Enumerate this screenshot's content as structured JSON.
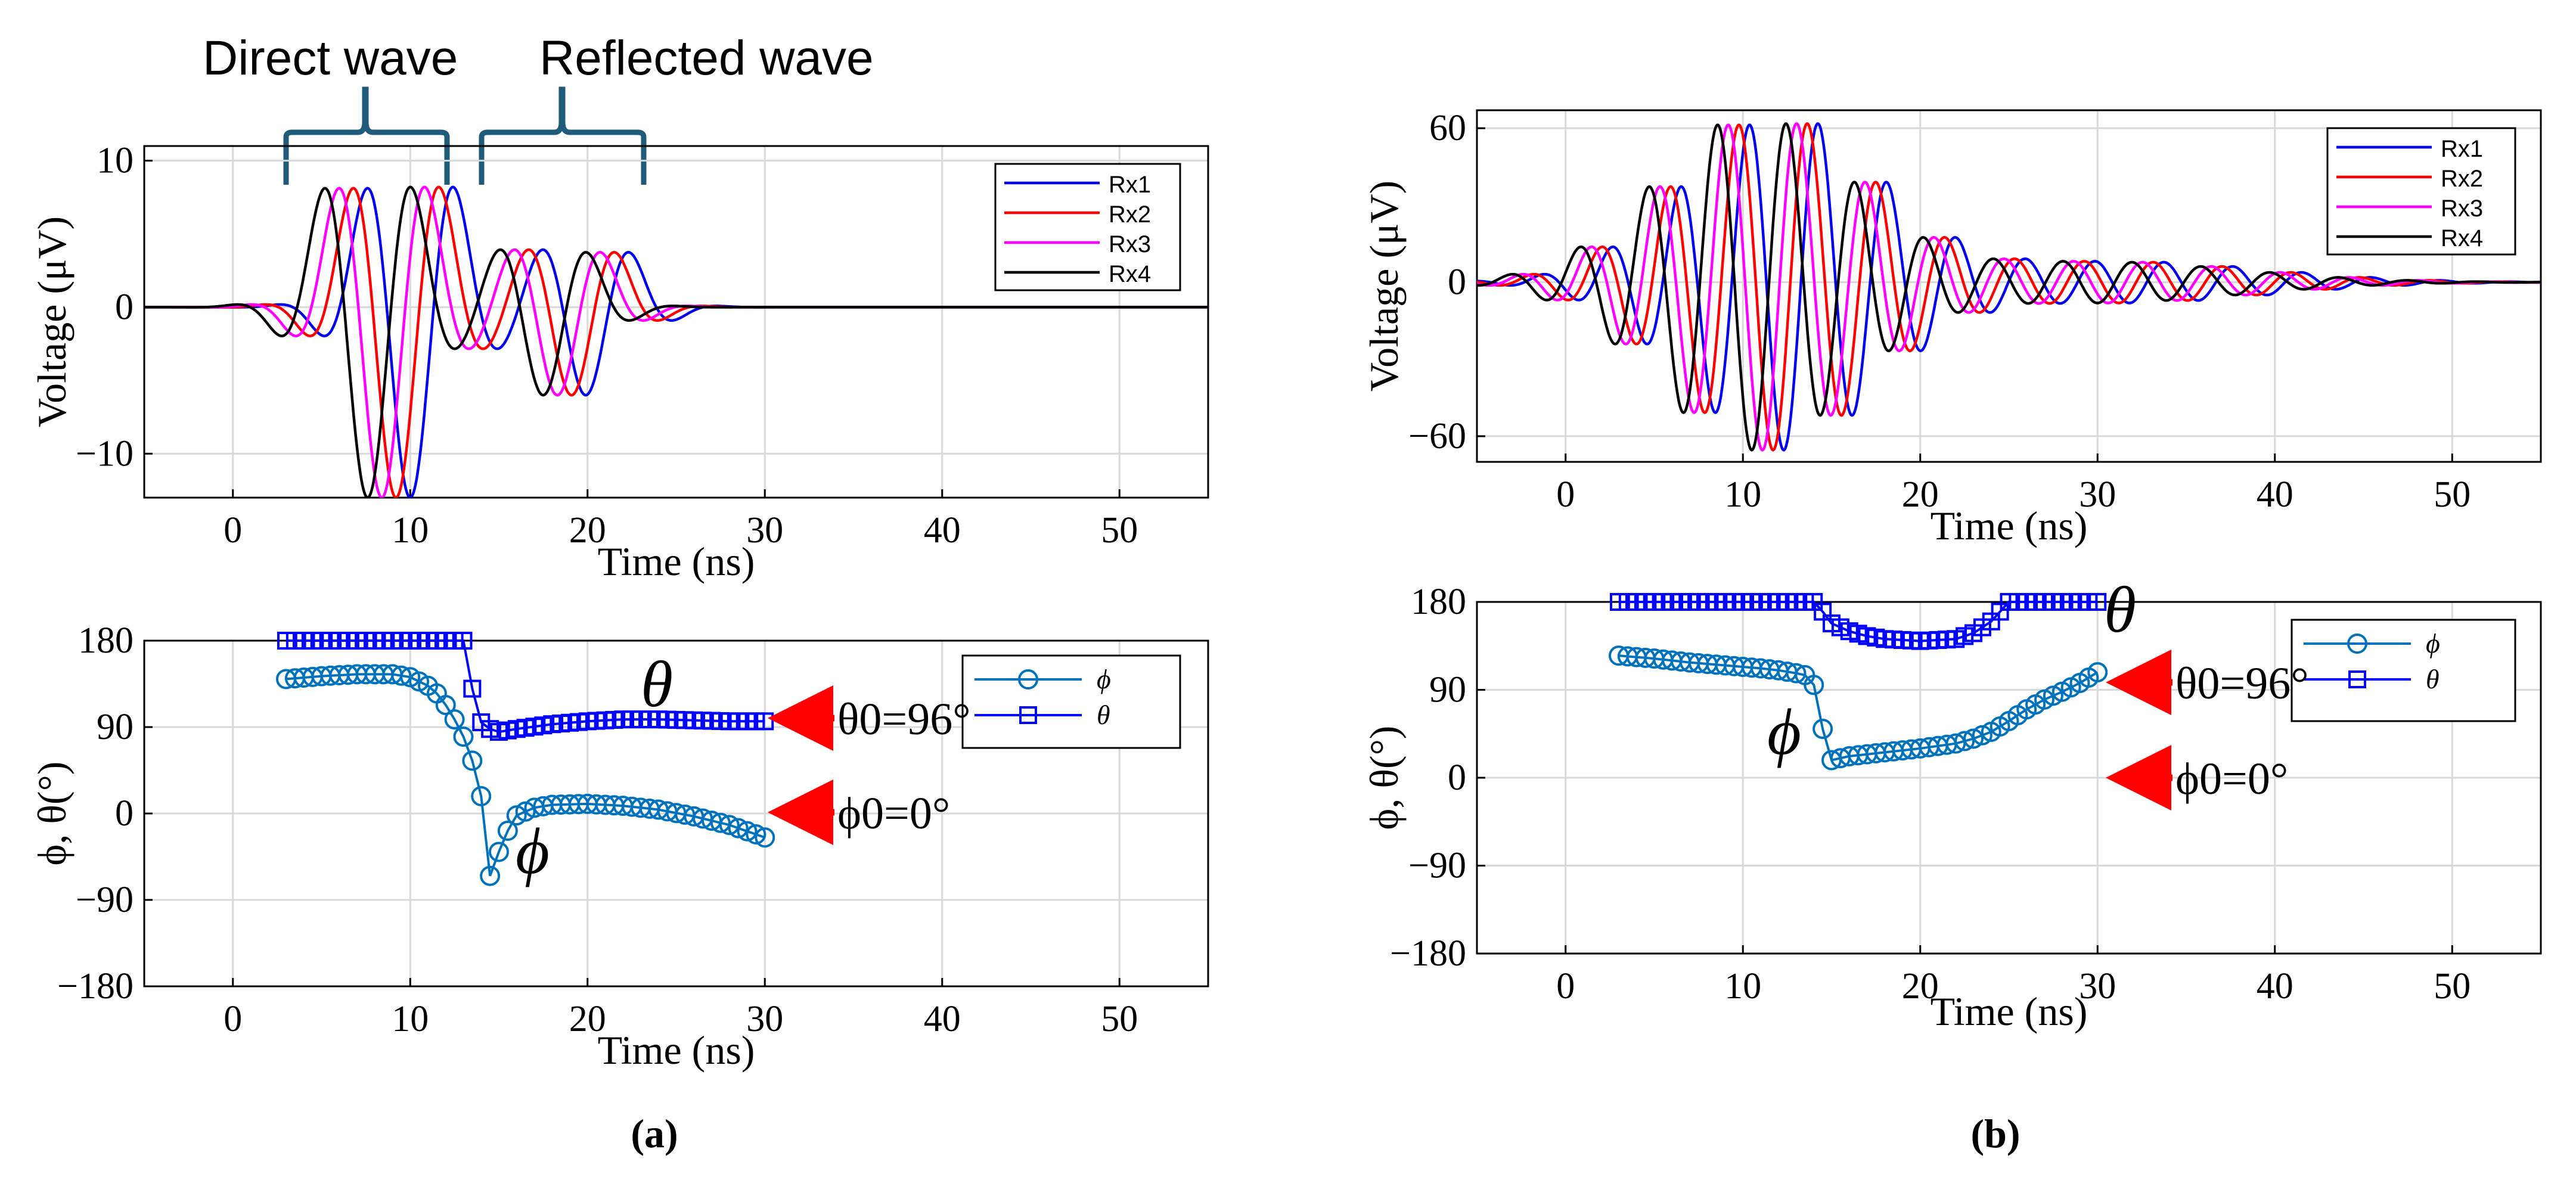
{
  "figure": {
    "panel_labels": [
      "(a)",
      "(b)"
    ],
    "annotations": {
      "direct_wave": "Direct wave",
      "reflected_wave": "Reflected wave",
      "theta_symbol": "θ",
      "phi_symbol": "ϕ",
      "theta0": "θ0=96°",
      "phi0": "ϕ0=0°"
    },
    "colors": {
      "rx1": "#0000ee",
      "rx2": "#ff0000",
      "rx3": "#ff00ff",
      "rx4": "#000000",
      "phi": "#0072bd",
      "theta": "#0000ff",
      "arrow": "#ff0000",
      "brace": "#1f5b7a",
      "grid": "#d9d9d9"
    }
  },
  "chart_data": [
    {
      "id": "a-voltage",
      "type": "line",
      "panel": "(a)",
      "xlabel": "Time (ns)",
      "ylabel": "Voltage (μV)",
      "xlim": [
        -5,
        55
      ],
      "ylim": [
        -13,
        11
      ],
      "xticks": [
        0,
        10,
        20,
        30,
        40,
        50
      ],
      "yticks": [
        -10,
        0,
        10
      ],
      "grid": true,
      "legend_position": "top-right",
      "signal": {
        "carrier_period_ns": 5.3,
        "pulses": [
          {
            "center_ns": 7.6,
            "sigma_ns": 2.6,
            "amplitude_uV": 13
          },
          {
            "center_ns": 17.5,
            "sigma_ns": 2.6,
            "amplitude_uV": 6
          }
        ],
        "per_series_delay_ns": 0.8
      },
      "series": [
        {
          "name": "Rx1",
          "delay_ns": 2.4
        },
        {
          "name": "Rx2",
          "delay_ns": 1.6
        },
        {
          "name": "Rx3",
          "delay_ns": 0.8
        },
        {
          "name": "Rx4",
          "delay_ns": 0.0
        }
      ]
    },
    {
      "id": "a-angles",
      "type": "line",
      "panel": "(a)",
      "xlabel": "Time (ns)",
      "ylabel": "ϕ, θ(°)",
      "xlim": [
        -5,
        55
      ],
      "ylim": [
        -180,
        180
      ],
      "xticks": [
        0,
        10,
        20,
        30,
        40,
        50
      ],
      "yticks": [
        -180,
        -90,
        0,
        90,
        180
      ],
      "grid": true,
      "legend_position": "top-right",
      "series": [
        {
          "name": "ϕ",
          "marker": "circle",
          "x": [
            3,
            5,
            7,
            9,
            10,
            11,
            11.5,
            12,
            12.5,
            13,
            13.5,
            14,
            14.5,
            15,
            15.5,
            16,
            17,
            18,
            20,
            22,
            24,
            26,
            28,
            30
          ],
          "y": [
            140,
            143,
            145,
            145,
            142,
            133,
            125,
            113,
            98,
            80,
            55,
            18,
            -65,
            -40,
            -18,
            -2,
            6,
            9,
            10,
            8,
            4,
            -3,
            -12,
            -25
          ]
        },
        {
          "name": "θ",
          "marker": "square",
          "x": [
            3,
            5,
            10,
            12,
            13,
            13.5,
            14,
            14.5,
            15,
            16,
            18,
            20,
            22,
            24,
            26,
            28,
            30
          ],
          "y": [
            180,
            180,
            180,
            180,
            180,
            130,
            95,
            88,
            85,
            88,
            93,
            96,
            98,
            98,
            97,
            96,
            96
          ]
        }
      ]
    },
    {
      "id": "b-voltage",
      "type": "line",
      "panel": "(b)",
      "xlabel": "Time (ns)",
      "ylabel": "Voltage (μV)",
      "xlim": [
        -5,
        55
      ],
      "ylim": [
        -70,
        67
      ],
      "xticks": [
        0,
        10,
        20,
        30,
        40,
        50
      ],
      "yticks": [
        -60,
        0,
        60
      ],
      "grid": true,
      "legend_position": "top-right",
      "signal": {
        "carrier_period_ns": 3.9,
        "pulses": [
          {
            "center_ns": 10.5,
            "sigma_ns": 5.5,
            "amplitude_uV": 65
          },
          {
            "center_ns": 30,
            "sigma_ns": 8,
            "amplitude_uV": 8
          }
        ],
        "per_series_delay_ns": 0.6
      },
      "series": [
        {
          "name": "Rx1",
          "delay_ns": 1.8
        },
        {
          "name": "Rx2",
          "delay_ns": 1.2
        },
        {
          "name": "Rx3",
          "delay_ns": 0.6
        },
        {
          "name": "Rx4",
          "delay_ns": 0.0
        }
      ]
    },
    {
      "id": "b-angles",
      "type": "line",
      "panel": "(b)",
      "xlabel": "Time (ns)",
      "ylabel": "ϕ, θ(°)",
      "xlim": [
        -5,
        55
      ],
      "ylim": [
        -180,
        180
      ],
      "xticks": [
        0,
        10,
        20,
        30,
        40,
        50
      ],
      "yticks": [
        -180,
        -90,
        0,
        90,
        180
      ],
      "grid": true,
      "legend_position": "top-right",
      "series": [
        {
          "name": "ϕ",
          "marker": "circle",
          "x": [
            3,
            5,
            7,
            9,
            11,
            12,
            13,
            13.5,
            14,
            14.5,
            15,
            15.5,
            16,
            18,
            20,
            22,
            23,
            24,
            25,
            26,
            27,
            28,
            29,
            30
          ],
          "y": [
            125,
            122,
            118,
            115,
            112,
            110,
            107,
            105,
            95,
            50,
            18,
            20,
            22,
            26,
            30,
            35,
            40,
            47,
            58,
            70,
            80,
            88,
            97,
            108
          ]
        },
        {
          "name": "θ",
          "marker": "square",
          "x": [
            3,
            10,
            14,
            14.5,
            15,
            16,
            17,
            18,
            20,
            22,
            23,
            24,
            24.5,
            25,
            26,
            30
          ],
          "y": [
            180,
            180,
            180,
            170,
            158,
            150,
            145,
            142,
            140,
            142,
            148,
            160,
            170,
            180,
            180,
            180
          ]
        }
      ]
    }
  ]
}
